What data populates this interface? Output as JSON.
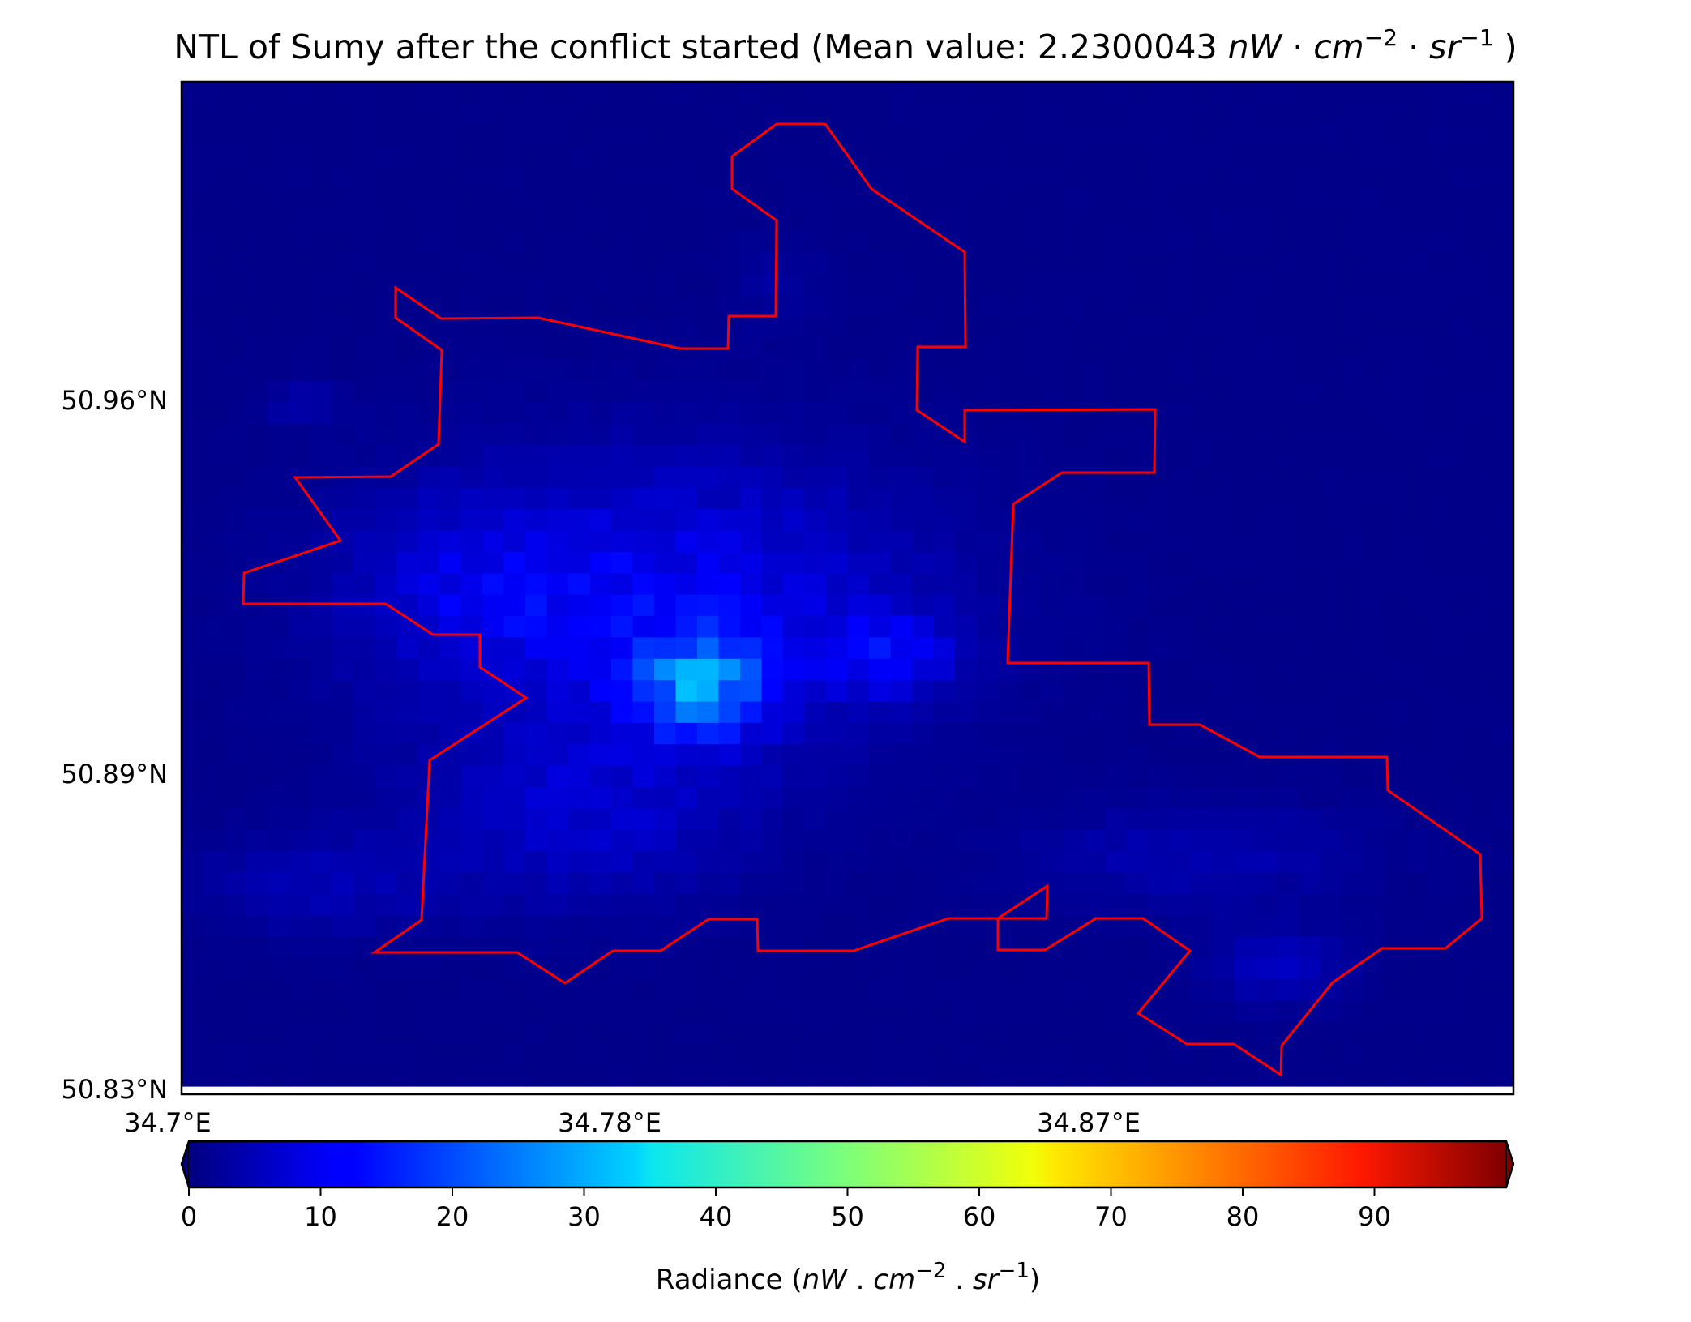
{
  "title": {
    "prefix": "NTL of Sumy after the conflict started (Mean value: 2.2300043 ",
    "unit_parts": [
      "nW",
      " · ",
      "cm",
      "−2",
      " · ",
      "sr",
      "−1",
      " )"
    ]
  },
  "map": {
    "lat_ticks": [
      "50.96°N",
      "50.89°N",
      "50.83°N"
    ],
    "lon_ticks": [
      "34.7°E",
      "34.78°E",
      "34.87°E"
    ],
    "boundary_color": "#ff0000",
    "background_color": "#00007f",
    "grid": "off"
  },
  "colorbar": {
    "colormap": "jet",
    "range": [
      0,
      100
    ],
    "extend": "both",
    "ticks": [
      "0",
      "10",
      "20",
      "30",
      "40",
      "50",
      "60",
      "70",
      "80",
      "90"
    ],
    "label_prefix": "Radiance (",
    "label_parts": [
      "nW",
      " . ",
      "cm",
      "−2",
      " . ",
      "sr",
      "−1",
      ")"
    ]
  }
}
